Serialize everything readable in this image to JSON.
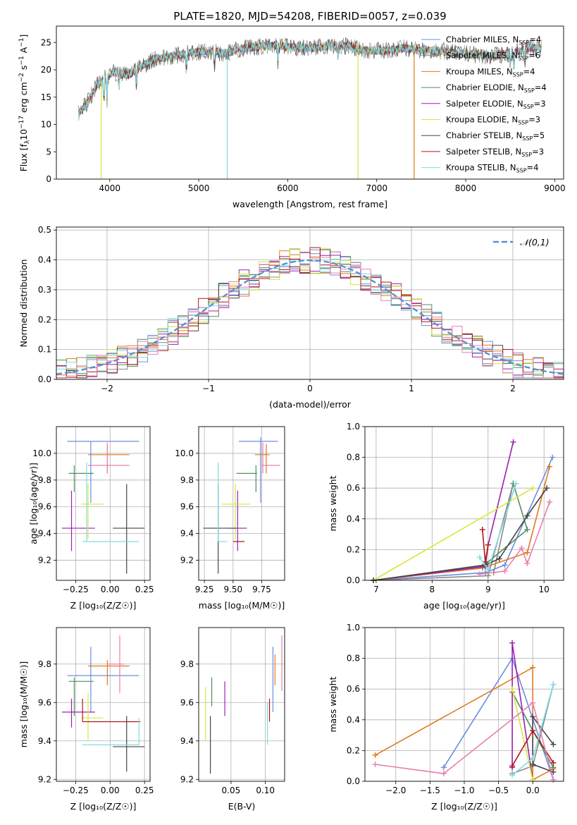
{
  "title": "PLATE=1820, MJD=54208, FIBERID=0057, z=0.039",
  "colors": [
    "#6b8ee0",
    "#888888",
    "#e07a1f",
    "#4f8f5f",
    "#9b1fb0",
    "#d6e83a",
    "#444444",
    "#b01818",
    "#7fdce3",
    "#e87fb0"
  ],
  "chart_data": [
    {
      "id": "spectrum",
      "type": "line",
      "xlabel": "wavelength [Angstrom, rest frame]",
      "ylabel": "Flux [f_λ10^-17 erg cm^-2 s^-1 A^-1]",
      "xlim": [
        3400,
        9100
      ],
      "ylim": [
        0,
        28
      ],
      "xticks": [
        4000,
        5000,
        6000,
        7000,
        8000,
        9000
      ],
      "yticks": [
        0,
        5,
        10,
        15,
        20,
        25
      ],
      "legend_position": "top-right",
      "series": [
        {
          "name": "Chabrier MILES, N_SSP=4",
          "color": "#6b8ee0"
        },
        {
          "name": "Salpeter MILES, N_SSP=6",
          "color": "#888888"
        },
        {
          "name": "Kroupa MILES, N_SSP=4",
          "color": "#e07a1f"
        },
        {
          "name": "Chabrier ELODIE, N_SSP=4",
          "color": "#4f8f5f"
        },
        {
          "name": "Salpeter ELODIE, N_SSP=3",
          "color": "#9b1fb0"
        },
        {
          "name": "Kroupa ELODIE, N_SSP=3",
          "color": "#d6e83a"
        },
        {
          "name": "Chabrier STELIB, N_SSP=5",
          "color": "#444444"
        },
        {
          "name": "Salpeter STELIB, N_SSP=3",
          "color": "#b01818"
        },
        {
          "name": "Kroupa STELIB, N_SSP=4",
          "color": "#7fdce3"
        }
      ],
      "continuum": [
        [
          3650,
          12
        ],
        [
          3750,
          14
        ],
        [
          3850,
          17
        ],
        [
          3950,
          18.5
        ],
        [
          4050,
          19.5
        ],
        [
          4200,
          19
        ],
        [
          4350,
          20.5
        ],
        [
          4500,
          22
        ],
        [
          4700,
          22.5
        ],
        [
          4900,
          23
        ],
        [
          5100,
          23.5
        ],
        [
          5300,
          23
        ],
        [
          5500,
          24
        ],
        [
          5700,
          24.3
        ],
        [
          5900,
          24.5
        ],
        [
          6100,
          24
        ],
        [
          6300,
          24
        ],
        [
          6500,
          24.5
        ],
        [
          6700,
          24.2
        ],
        [
          6900,
          23.5
        ],
        [
          7100,
          23.5
        ],
        [
          7300,
          24
        ],
        [
          7500,
          23.5
        ],
        [
          7700,
          23.5
        ],
        [
          7900,
          23
        ],
        [
          8100,
          22.8
        ],
        [
          8300,
          22.5
        ],
        [
          8500,
          23
        ],
        [
          8700,
          24
        ],
        [
          8850,
          24
        ]
      ],
      "drops": [
        {
          "x": 3905,
          "y": 0,
          "color": "#d6e83a"
        },
        {
          "x": 5320,
          "y": 0,
          "color": "#7fdce3"
        },
        {
          "x": 6790,
          "y": 0,
          "color": "#d6e83a"
        },
        {
          "x": 7420,
          "y": 0,
          "color": "#e07a1f"
        }
      ]
    },
    {
      "id": "residuals",
      "type": "line",
      "xlabel": "(data-model)/error",
      "ylabel": "Normed distribution",
      "xlim": [
        -2.5,
        2.5
      ],
      "ylim": [
        0,
        0.51
      ],
      "xticks": [
        -2,
        -1,
        0,
        1,
        2
      ],
      "yticks": [
        0.0,
        0.1,
        0.2,
        0.3,
        0.4,
        0.5
      ],
      "legend_position": "top-right",
      "legend": "𝒩(0,1)",
      "gaussian": {
        "mu": 0,
        "sigma": 1,
        "color": "#5a8fd6"
      },
      "bin_width": 0.1
    },
    {
      "id": "age_vs_Z",
      "type": "scatter",
      "xlabel": "Z [log₁₀(Z/Z☉)]",
      "ylabel": "age  [log₁₀(age/yr)]",
      "xlim": [
        -0.39,
        0.29
      ],
      "ylim": [
        9.05,
        10.2
      ],
      "xticks": [
        -0.25,
        0.0,
        0.25
      ],
      "yticks": [
        9.2,
        9.4,
        9.6,
        9.8,
        10.0
      ],
      "points": [
        {
          "x": -0.14,
          "y": 10.09,
          "xlo": -0.31,
          "xhi": 0.21,
          "ylo": 9.63,
          "yhi": 10.09,
          "color": "#6b8ee0"
        },
        {
          "x": -0.02,
          "y": 9.99,
          "xlo": -0.16,
          "xhi": 0.14,
          "ylo": 9.85,
          "yhi": 10.07,
          "color": "#e07a1f"
        },
        {
          "x": -0.02,
          "y": 9.91,
          "xlo": -0.16,
          "xhi": 0.14,
          "ylo": 9.85,
          "yhi": 10.08,
          "color": "#e87fb0"
        },
        {
          "x": -0.26,
          "y": 9.85,
          "xlo": -0.3,
          "xhi": -0.12,
          "ylo": 9.71,
          "yhi": 9.91,
          "color": "#4f8f5f"
        },
        {
          "x": -0.28,
          "y": 9.44,
          "xlo": -0.35,
          "xhi": -0.11,
          "ylo": 9.27,
          "yhi": 9.72,
          "color": "#9b1fb0"
        },
        {
          "x": -0.16,
          "y": 9.62,
          "xlo": -0.21,
          "xhi": -0.05,
          "ylo": 9.36,
          "yhi": 9.77,
          "color": "#d6e83a"
        },
        {
          "x": 0.12,
          "y": 9.44,
          "xlo": 0.02,
          "xhi": 0.25,
          "ylo": 9.1,
          "yhi": 9.77,
          "color": "#444444"
        },
        {
          "x": -0.17,
          "y": 9.34,
          "xlo": -0.2,
          "xhi": 0.21,
          "ylo": 9.34,
          "yhi": 9.93,
          "color": "#7fdce3"
        }
      ]
    },
    {
      "id": "age_vs_mass",
      "type": "scatter",
      "xlabel": "mass [log₁₀(M/M☉)]",
      "ylabel": "",
      "xlim": [
        9.2,
        9.95
      ],
      "ylim": [
        9.05,
        10.2
      ],
      "xticks": [
        9.25,
        9.5,
        9.75
      ],
      "yticks": [
        9.2,
        9.4,
        9.6,
        9.8,
        10.0
      ],
      "points": [
        {
          "x": 9.74,
          "y": 10.09,
          "xlo": 9.55,
          "xhi": 9.89,
          "ylo": 9.63,
          "yhi": 10.12,
          "color": "#6b8ee0"
        },
        {
          "x": 9.79,
          "y": 9.99,
          "xlo": 9.69,
          "xhi": 9.82,
          "ylo": 9.85,
          "yhi": 10.07,
          "color": "#e07a1f"
        },
        {
          "x": 9.76,
          "y": 9.91,
          "xlo": 9.75,
          "xhi": 9.91,
          "ylo": 9.85,
          "yhi": 10.08,
          "color": "#e87fb0"
        },
        {
          "x": 9.7,
          "y": 9.85,
          "xlo": 9.53,
          "xhi": 9.71,
          "ylo": 9.71,
          "yhi": 9.91,
          "color": "#4f8f5f"
        },
        {
          "x": 9.54,
          "y": 9.44,
          "xlo": 9.47,
          "xhi": 9.62,
          "ylo": 9.27,
          "yhi": 9.72,
          "color": "#9b1fb0"
        },
        {
          "x": 9.52,
          "y": 9.62,
          "xlo": 9.4,
          "xhi": 9.65,
          "ylo": 9.36,
          "yhi": 9.77,
          "color": "#d6e83a"
        },
        {
          "x": 9.37,
          "y": 9.44,
          "xlo": 9.24,
          "xhi": 9.53,
          "ylo": 9.1,
          "yhi": 9.77,
          "color": "#444444"
        },
        {
          "x": 9.5,
          "y": 9.34,
          "xlo": 9.5,
          "xhi": 9.6,
          "ylo": 9.34,
          "yhi": 9.34,
          "color": "#b01818"
        },
        {
          "x": 9.37,
          "y": 9.34,
          "xlo": 9.37,
          "xhi": 9.45,
          "ylo": 9.34,
          "yhi": 9.93,
          "color": "#7fdce3"
        }
      ]
    },
    {
      "id": "mw_vs_age",
      "type": "line",
      "xlabel": "age  [log₁₀(age/yr)]",
      "ylabel": "mass weight",
      "xlim": [
        6.8,
        10.35
      ],
      "ylim": [
        0,
        1.0
      ],
      "xticks": [
        7,
        8,
        9,
        10
      ],
      "yticks": [
        0.0,
        0.2,
        0.4,
        0.6,
        0.8,
        1.0
      ],
      "series": [
        {
          "color": "#6b8ee0",
          "points": [
            [
              6.95,
              0
            ],
            [
              8.95,
              0.05
            ],
            [
              9.3,
              0.1
            ],
            [
              10.15,
              0.8
            ]
          ]
        },
        {
          "color": "#888888",
          "points": [
            [
              6.95,
              0
            ],
            [
              9.0,
              0.03
            ],
            [
              9.45,
              0.63
            ],
            [
              9.1,
              0.05
            ]
          ]
        },
        {
          "color": "#e07a1f",
          "points": [
            [
              6.95,
              0
            ],
            [
              8.9,
              0.08
            ],
            [
              9.7,
              0.18
            ],
            [
              10.1,
              0.74
            ]
          ]
        },
        {
          "color": "#4f8f5f",
          "points": [
            [
              6.95,
              0
            ],
            [
              8.9,
              0.09
            ],
            [
              9.7,
              0.33
            ],
            [
              9.45,
              0.63
            ]
          ]
        },
        {
          "color": "#9b1fb0",
          "points": [
            [
              6.95,
              0
            ],
            [
              8.95,
              0.09
            ],
            [
              9.0,
              0.23
            ],
            [
              9.45,
              0.9
            ]
          ]
        },
        {
          "color": "#d6e83a",
          "points": [
            [
              6.95,
              0
            ],
            [
              9.8,
              0.6
            ]
          ]
        },
        {
          "color": "#444444",
          "points": [
            [
              6.95,
              0
            ],
            [
              8.95,
              0.1
            ],
            [
              9.2,
              0.14
            ],
            [
              9.7,
              0.42
            ],
            [
              10.05,
              0.6
            ]
          ]
        },
        {
          "color": "#b01818",
          "points": [
            [
              8.9,
              0.33
            ],
            [
              8.95,
              0.12
            ],
            [
              9.0,
              0.23
            ]
          ]
        },
        {
          "color": "#7fdce3",
          "points": [
            [
              8.85,
              0.15
            ],
            [
              9.0,
              0.07
            ],
            [
              9.5,
              0.63
            ]
          ]
        },
        {
          "color": "#e87fb0",
          "points": [
            [
              8.85,
              0.04
            ],
            [
              9.3,
              0.06
            ],
            [
              9.6,
              0.21
            ],
            [
              9.7,
              0.11
            ],
            [
              10.1,
              0.51
            ]
          ]
        }
      ]
    },
    {
      "id": "mass_vs_Z",
      "type": "scatter",
      "xlabel": "Z [log₁₀(Z/Z☉)]",
      "ylabel": "mass [log₁₀(M/M☉)]",
      "xlim": [
        -0.39,
        0.29
      ],
      "ylim": [
        9.19,
        9.99
      ],
      "xticks": [
        -0.25,
        0.0,
        0.25
      ],
      "yticks": [
        9.2,
        9.4,
        9.6,
        9.8
      ],
      "points": [
        {
          "x": -0.14,
          "y": 9.74,
          "xlo": -0.31,
          "xhi": 0.21,
          "ylo": 9.55,
          "yhi": 9.89,
          "color": "#6b8ee0"
        },
        {
          "x": -0.02,
          "y": 9.79,
          "xlo": -0.16,
          "xhi": 0.14,
          "ylo": 9.69,
          "yhi": 9.82,
          "color": "#e07a1f"
        },
        {
          "x": 0.07,
          "y": 9.8,
          "xlo": -0.02,
          "xhi": 0.1,
          "ylo": 9.65,
          "yhi": 9.95,
          "color": "#e87fb0"
        },
        {
          "x": -0.26,
          "y": 9.71,
          "xlo": -0.3,
          "xhi": -0.12,
          "ylo": 9.53,
          "yhi": 9.73,
          "color": "#4f8f5f"
        },
        {
          "x": -0.28,
          "y": 9.55,
          "xlo": -0.35,
          "xhi": -0.11,
          "ylo": 9.47,
          "yhi": 9.62,
          "color": "#9b1fb0"
        },
        {
          "x": -0.16,
          "y": 9.52,
          "xlo": -0.21,
          "xhi": -0.05,
          "ylo": 9.4,
          "yhi": 9.65,
          "color": "#d6e83a"
        },
        {
          "x": 0.12,
          "y": 9.37,
          "xlo": 0.02,
          "xhi": 0.25,
          "ylo": 9.24,
          "yhi": 9.53,
          "color": "#444444"
        },
        {
          "x": -0.2,
          "y": 9.5,
          "xlo": -0.2,
          "xhi": 0.22,
          "ylo": 9.5,
          "yhi": 9.62,
          "color": "#b01818"
        },
        {
          "x": 0.21,
          "y": 9.38,
          "xlo": -0.2,
          "xhi": 0.21,
          "ylo": 9.38,
          "yhi": 9.52,
          "color": "#7fdce3"
        }
      ]
    },
    {
      "id": "mass_vs_EBV",
      "type": "scatter",
      "xlabel": "E(B-V)",
      "ylabel": "",
      "xlim": [
        0.003,
        0.128
      ],
      "ylim": [
        9.19,
        9.99
      ],
      "xticks": [
        0.05,
        0.1
      ],
      "yticks": [
        9.2,
        9.4,
        9.6,
        9.8
      ],
      "points": [
        {
          "x": 0.111,
          "y": 9.74,
          "ylo": 9.55,
          "yhi": 9.89,
          "color": "#6b8ee0"
        },
        {
          "x": 0.114,
          "y": 9.79,
          "ylo": 9.69,
          "yhi": 9.85,
          "color": "#e07a1f"
        },
        {
          "x": 0.124,
          "y": 9.8,
          "ylo": 9.66,
          "yhi": 9.95,
          "color": "#e87fb0"
        },
        {
          "x": 0.022,
          "y": 9.71,
          "ylo": 9.58,
          "yhi": 9.73,
          "color": "#4f8f5f"
        },
        {
          "x": 0.041,
          "y": 9.6,
          "ylo": 9.53,
          "yhi": 9.71,
          "color": "#9b1fb0"
        },
        {
          "x": 0.013,
          "y": 9.55,
          "ylo": 9.4,
          "yhi": 9.68,
          "color": "#d6e83a"
        },
        {
          "x": 0.02,
          "y": 9.37,
          "ylo": 9.23,
          "yhi": 9.53,
          "color": "#444444"
        },
        {
          "x": 0.106,
          "y": 9.58,
          "ylo": 9.5,
          "yhi": 9.62,
          "color": "#b01818"
        },
        {
          "x": 0.103,
          "y": 9.45,
          "ylo": 9.38,
          "yhi": 9.6,
          "color": "#7fdce3"
        }
      ]
    },
    {
      "id": "mw_vs_Z",
      "type": "line",
      "xlabel": "Z [log₁₀(Z/Z☉)]",
      "ylabel": "mass weight",
      "xlim": [
        -2.45,
        0.45
      ],
      "ylim": [
        0,
        1.0
      ],
      "xticks": [
        -2.0,
        -1.5,
        -1.0,
        -0.5,
        0.0
      ],
      "yticks": [
        0.0,
        0.2,
        0.4,
        0.6,
        0.8,
        1.0
      ],
      "series": [
        {
          "color": "#6b8ee0",
          "points": [
            [
              -1.3,
              0.09
            ],
            [
              -0.3,
              0.8
            ],
            [
              0.3,
              0.01
            ]
          ]
        },
        {
          "color": "#888888",
          "points": [
            [
              -0.3,
              0.05
            ],
            [
              0.0,
              0.1
            ],
            [
              0.3,
              0.63
            ]
          ]
        },
        {
          "color": "#e07a1f",
          "points": [
            [
              -2.3,
              0.17
            ],
            [
              0.0,
              0.74
            ],
            [
              0.0,
              0.01
            ],
            [
              0.3,
              0.08
            ]
          ]
        },
        {
          "color": "#4f8f5f",
          "points": [
            [
              -0.3,
              0.58
            ],
            [
              0.0,
              0.33
            ],
            [
              0.3,
              0.09
            ]
          ]
        },
        {
          "color": "#9b1fb0",
          "points": [
            [
              -0.3,
              0.09
            ],
            [
              -0.3,
              0.9
            ],
            [
              0.0,
              0.01
            ]
          ]
        },
        {
          "color": "#d6e83a",
          "points": [
            [
              -0.3,
              0.6
            ],
            [
              0.0,
              0.01
            ]
          ]
        },
        {
          "color": "#444444",
          "points": [
            [
              0.3,
              0.24
            ],
            [
              0.0,
              0.42
            ],
            [
              0.0,
              0.11
            ],
            [
              0.3,
              0.06
            ]
          ]
        },
        {
          "color": "#b01818",
          "points": [
            [
              -0.3,
              0.1
            ],
            [
              0.0,
              0.33
            ],
            [
              0.3,
              0.12
            ]
          ]
        },
        {
          "color": "#7fdce3",
          "points": [
            [
              -0.3,
              0.04
            ],
            [
              0.0,
              0.15
            ],
            [
              0.3,
              0.63
            ]
          ]
        },
        {
          "color": "#e87fb0",
          "points": [
            [
              -2.3,
              0.11
            ],
            [
              -1.3,
              0.05
            ],
            [
              0.0,
              0.51
            ],
            [
              0.3,
              0.01
            ]
          ]
        }
      ]
    }
  ]
}
